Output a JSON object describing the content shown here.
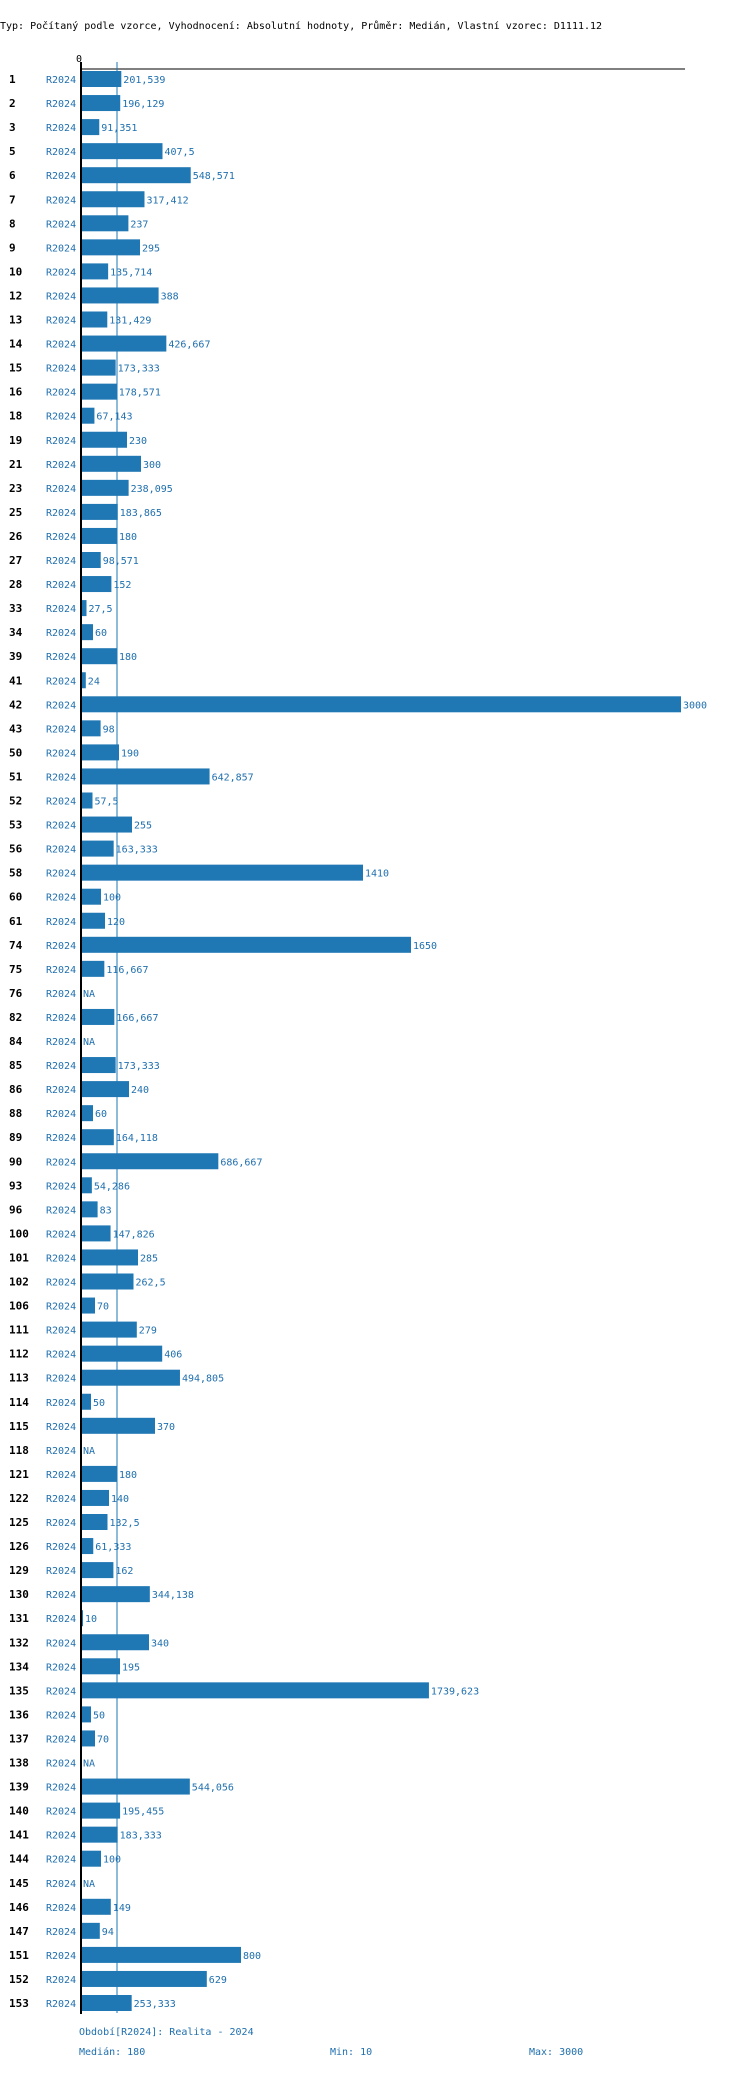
{
  "header": "Typ: Počítaný podle vzorce, Vyhodnocení: Absolutní hodnoty, Průměr: Medián, Vlastní vzorec: D1111.12",
  "colors": {
    "bar": "#1f77b4",
    "text": "#1f6fae",
    "ink": "#000000"
  },
  "chart_data": {
    "type": "bar",
    "orientation": "horizontal",
    "axis_zero_label": "0",
    "xlim": [
      0,
      3020
    ],
    "median_line": 180,
    "series_label": "R2024",
    "na_label": "NA",
    "rows": [
      {
        "id": "1",
        "value": 201.539,
        "label": "201,539"
      },
      {
        "id": "2",
        "value": 196.129,
        "label": "196,129"
      },
      {
        "id": "3",
        "value": 91.351,
        "label": "91,351"
      },
      {
        "id": "5",
        "value": 407.5,
        "label": "407,5"
      },
      {
        "id": "6",
        "value": 548.571,
        "label": "548,571"
      },
      {
        "id": "7",
        "value": 317.412,
        "label": "317,412"
      },
      {
        "id": "8",
        "value": 237,
        "label": "237"
      },
      {
        "id": "9",
        "value": 295,
        "label": "295"
      },
      {
        "id": "10",
        "value": 135.714,
        "label": "135,714"
      },
      {
        "id": "12",
        "value": 388,
        "label": "388"
      },
      {
        "id": "13",
        "value": 131.429,
        "label": "131,429"
      },
      {
        "id": "14",
        "value": 426.667,
        "label": "426,667"
      },
      {
        "id": "15",
        "value": 173.333,
        "label": "173,333"
      },
      {
        "id": "16",
        "value": 178.571,
        "label": "178,571"
      },
      {
        "id": "18",
        "value": 67.143,
        "label": "67,143"
      },
      {
        "id": "19",
        "value": 230,
        "label": "230"
      },
      {
        "id": "21",
        "value": 300,
        "label": "300"
      },
      {
        "id": "23",
        "value": 238.095,
        "label": "238,095"
      },
      {
        "id": "25",
        "value": 183.865,
        "label": "183,865"
      },
      {
        "id": "26",
        "value": 180,
        "label": "180"
      },
      {
        "id": "27",
        "value": 98.571,
        "label": "98,571"
      },
      {
        "id": "28",
        "value": 152,
        "label": "152"
      },
      {
        "id": "33",
        "value": 27.5,
        "label": "27,5"
      },
      {
        "id": "34",
        "value": 60,
        "label": "60"
      },
      {
        "id": "39",
        "value": 180,
        "label": "180"
      },
      {
        "id": "41",
        "value": 24,
        "label": "24"
      },
      {
        "id": "42",
        "value": 3000,
        "label": "3000"
      },
      {
        "id": "43",
        "value": 98,
        "label": "98"
      },
      {
        "id": "50",
        "value": 190,
        "label": "190"
      },
      {
        "id": "51",
        "value": 642.857,
        "label": "642,857"
      },
      {
        "id": "52",
        "value": 57.5,
        "label": "57,5"
      },
      {
        "id": "53",
        "value": 255,
        "label": "255"
      },
      {
        "id": "56",
        "value": 163.333,
        "label": "163,333"
      },
      {
        "id": "58",
        "value": 1410,
        "label": "1410"
      },
      {
        "id": "60",
        "value": 100,
        "label": "100"
      },
      {
        "id": "61",
        "value": 120,
        "label": "120"
      },
      {
        "id": "74",
        "value": 1650,
        "label": "1650"
      },
      {
        "id": "75",
        "value": 116.667,
        "label": "116,667"
      },
      {
        "id": "76",
        "value": null,
        "label": "NA"
      },
      {
        "id": "82",
        "value": 166.667,
        "label": "166,667"
      },
      {
        "id": "84",
        "value": null,
        "label": "NA"
      },
      {
        "id": "85",
        "value": 173.333,
        "label": "173,333"
      },
      {
        "id": "86",
        "value": 240,
        "label": "240"
      },
      {
        "id": "88",
        "value": 60,
        "label": "60"
      },
      {
        "id": "89",
        "value": 164.118,
        "label": "164,118"
      },
      {
        "id": "90",
        "value": 686.667,
        "label": "686,667"
      },
      {
        "id": "93",
        "value": 54.286,
        "label": "54,286"
      },
      {
        "id": "96",
        "value": 83,
        "label": "83"
      },
      {
        "id": "100",
        "value": 147.826,
        "label": "147,826"
      },
      {
        "id": "101",
        "value": 285,
        "label": "285"
      },
      {
        "id": "102",
        "value": 262.5,
        "label": "262,5"
      },
      {
        "id": "106",
        "value": 70,
        "label": "70"
      },
      {
        "id": "111",
        "value": 279,
        "label": "279"
      },
      {
        "id": "112",
        "value": 406,
        "label": "406"
      },
      {
        "id": "113",
        "value": 494.805,
        "label": "494,805"
      },
      {
        "id": "114",
        "value": 50,
        "label": "50"
      },
      {
        "id": "115",
        "value": 370,
        "label": "370"
      },
      {
        "id": "118",
        "value": null,
        "label": "NA"
      },
      {
        "id": "121",
        "value": 180,
        "label": "180"
      },
      {
        "id": "122",
        "value": 140,
        "label": "140"
      },
      {
        "id": "125",
        "value": 132.5,
        "label": "132,5"
      },
      {
        "id": "126",
        "value": 61.333,
        "label": "61,333"
      },
      {
        "id": "129",
        "value": 162,
        "label": "162"
      },
      {
        "id": "130",
        "value": 344.138,
        "label": "344,138"
      },
      {
        "id": "131",
        "value": 10,
        "label": "10"
      },
      {
        "id": "132",
        "value": 340,
        "label": "340"
      },
      {
        "id": "134",
        "value": 195,
        "label": "195"
      },
      {
        "id": "135",
        "value": 1739.623,
        "label": "1739,623"
      },
      {
        "id": "136",
        "value": 50,
        "label": "50"
      },
      {
        "id": "137",
        "value": 70,
        "label": "70"
      },
      {
        "id": "138",
        "value": null,
        "label": "NA"
      },
      {
        "id": "139",
        "value": 544.056,
        "label": "544,056"
      },
      {
        "id": "140",
        "value": 195.455,
        "label": "195,455"
      },
      {
        "id": "141",
        "value": 183.333,
        "label": "183,333"
      },
      {
        "id": "144",
        "value": 100,
        "label": "100"
      },
      {
        "id": "145",
        "value": null,
        "label": "NA"
      },
      {
        "id": "146",
        "value": 149,
        "label": "149"
      },
      {
        "id": "147",
        "value": 94,
        "label": "94"
      },
      {
        "id": "151",
        "value": 800,
        "label": "800"
      },
      {
        "id": "152",
        "value": 629,
        "label": "629"
      },
      {
        "id": "153",
        "value": 253.333,
        "label": "253,333"
      }
    ]
  },
  "footer": {
    "period": "Období[R2024]: Realita - 2024",
    "median": "Medián: 180",
    "min": "Min: 10",
    "max": "Max: 3000"
  }
}
